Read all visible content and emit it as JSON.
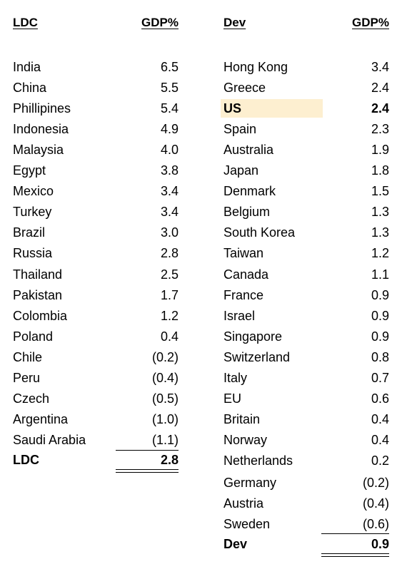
{
  "ldc": {
    "header_name": "LDC",
    "header_value": "GDP%",
    "rows": [
      {
        "name": "India",
        "value": "6.5"
      },
      {
        "name": "China",
        "value": "5.5"
      },
      {
        "name": "Phillipines",
        "value": "5.4"
      },
      {
        "name": "Indonesia",
        "value": "4.9"
      },
      {
        "name": "Malaysia",
        "value": "4.0"
      },
      {
        "name": "Egypt",
        "value": "3.8"
      },
      {
        "name": "Mexico",
        "value": "3.4"
      },
      {
        "name": "Turkey",
        "value": "3.4"
      },
      {
        "name": "Brazil",
        "value": "3.0"
      },
      {
        "name": "Russia",
        "value": "2.8"
      },
      {
        "name": "Thailand",
        "value": "2.5"
      },
      {
        "name": "Pakistan",
        "value": "1.7"
      },
      {
        "name": "Colombia",
        "value": "1.2"
      },
      {
        "name": "Poland",
        "value": "0.4"
      },
      {
        "name": "Chile",
        "value": "(0.2)"
      },
      {
        "name": "Peru",
        "value": "(0.4)"
      },
      {
        "name": "Czech",
        "value": "(0.5)"
      },
      {
        "name": "Argentina",
        "value": "(1.0)"
      },
      {
        "name": "Saudi Arabia",
        "value": "(1.1)"
      }
    ],
    "total_name": "LDC",
    "total_value": "2.8"
  },
  "dev": {
    "header_name": "Dev",
    "header_value": "GDP%",
    "rows": [
      {
        "name": "Hong Kong",
        "value": "3.4"
      },
      {
        "name": "Greece",
        "value": "2.4"
      },
      {
        "name": "US",
        "value": "2.4"
      },
      {
        "name": "Spain",
        "value": "2.3"
      },
      {
        "name": "Australia",
        "value": "1.9"
      },
      {
        "name": "Japan",
        "value": "1.8"
      },
      {
        "name": "Denmark",
        "value": "1.5"
      },
      {
        "name": "Belgium",
        "value": "1.3"
      },
      {
        "name": "South Korea",
        "value": "1.3"
      },
      {
        "name": "Taiwan",
        "value": "1.2"
      },
      {
        "name": "Canada",
        "value": "1.1"
      },
      {
        "name": "France",
        "value": "0.9"
      },
      {
        "name": "Israel",
        "value": "0.9"
      },
      {
        "name": "Singapore",
        "value": "0.9"
      },
      {
        "name": "Switzerland",
        "value": "0.8"
      },
      {
        "name": "Italy",
        "value": "0.7"
      },
      {
        "name": "EU",
        "value": "0.6"
      },
      {
        "name": "Britain",
        "value": "0.4"
      },
      {
        "name": "Norway",
        "value": "0.4"
      },
      {
        "name": "Netherlands",
        "value": "0.2"
      },
      {
        "name": "Germany",
        "value": "(0.2)"
      },
      {
        "name": "Austria",
        "value": "(0.4)"
      },
      {
        "name": "Sweden",
        "value": "(0.6)"
      }
    ],
    "highlight_row": "US",
    "total_name": "Dev",
    "total_value": "0.9"
  },
  "colors": {
    "highlight": "#fdefd0"
  }
}
